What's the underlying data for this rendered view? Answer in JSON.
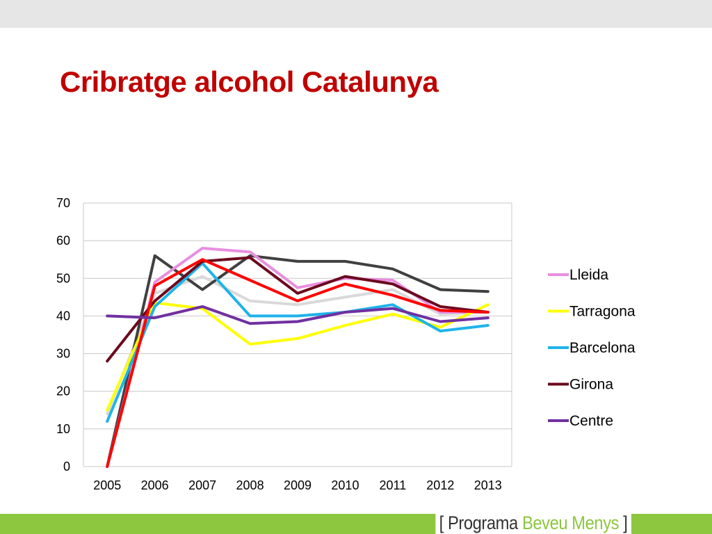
{
  "slide": {
    "title": "Cribratge alcohol Catalunya"
  },
  "footer": {
    "bracket_open": "[",
    "brand_part1": "Programa",
    "brand_part2": "Beveu Menys",
    "bracket_close": "]",
    "bar_color": "#8dc63f"
  },
  "chart_data": {
    "type": "line",
    "title": "",
    "xlabel": "",
    "ylabel": "",
    "categories": [
      "2005",
      "2006",
      "2007",
      "2008",
      "2009",
      "2010",
      "2011",
      "2012",
      "2013"
    ],
    "ylim": [
      0,
      70
    ],
    "yticks": [
      0,
      10,
      20,
      30,
      40,
      50,
      60,
      70
    ],
    "grid": "horizontal",
    "legend_position": "right",
    "series": [
      {
        "name": "",
        "color": "#d9d9d9",
        "in_legend": false,
        "values": [
          14,
          46,
          50.5,
          44,
          43,
          45,
          47,
          40.5,
          41
        ]
      },
      {
        "name": "",
        "color": "#404040",
        "in_legend": false,
        "values": [
          0,
          56,
          47,
          56,
          54.5,
          54.5,
          52.5,
          47,
          46.5
        ]
      },
      {
        "name": "Lleida",
        "color": "#e88ee0",
        "in_legend": true,
        "values": [
          0,
          49,
          58,
          57,
          47.5,
          50,
          49.5,
          41,
          41
        ]
      },
      {
        "name": "Tarragona",
        "color": "#ffff00",
        "in_legend": true,
        "values": [
          15,
          43.5,
          42,
          32.5,
          34,
          37.5,
          40.5,
          37,
          43
        ]
      },
      {
        "name": "Barcelona",
        "color": "#1fb3e9",
        "in_legend": true,
        "values": [
          12,
          42.5,
          54,
          40,
          40,
          41,
          43,
          36,
          37.5
        ]
      },
      {
        "name": "Girona",
        "color": "#6b0a1e",
        "in_legend": true,
        "values": [
          28,
          44,
          54.5,
          55.5,
          46,
          50.5,
          48.5,
          42.5,
          41
        ]
      },
      {
        "name": "",
        "color": "#ff0000",
        "in_legend": false,
        "values": [
          0,
          48,
          55,
          49.5,
          44,
          48.5,
          45.5,
          41.5,
          41
        ]
      },
      {
        "name": "Centre",
        "color": "#7030a0",
        "in_legend": true,
        "values": [
          40,
          39.5,
          42.5,
          38,
          38.5,
          41,
          42,
          38.5,
          39.5
        ]
      }
    ]
  }
}
